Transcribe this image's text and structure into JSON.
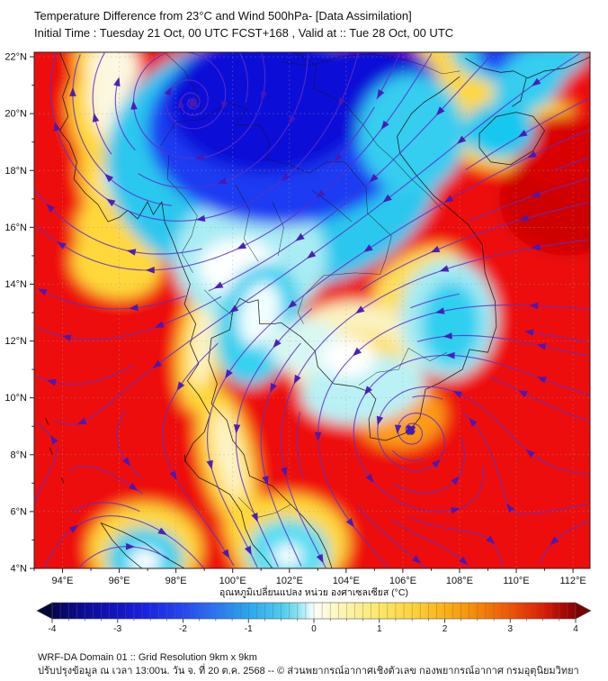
{
  "header": {
    "title_line1": "Temperature Difference from 23°C and Wind 500hPa- [Data Assimilation]",
    "title_line2": "Initial Time : Tuesday 21 Oct, 00 UTC FCST+168 , Valid at ::  Tue 28 Oct, 00 UTC"
  },
  "map": {
    "lon_min": 93.0,
    "lon_max": 112.6,
    "lat_min": 4.0,
    "lat_max": 22.16,
    "x_tick_labels": [
      "94°E",
      "96°E",
      "98°E",
      "100°E",
      "102°E",
      "104°E",
      "106°E",
      "108°E",
      "110°E",
      "112°E"
    ],
    "y_tick_labels": [
      "4°N",
      "6°N",
      "8°N",
      "10°N",
      "12°N",
      "14°N",
      "16°N",
      "18°N",
      "20°N",
      "22°N"
    ],
    "grid_step_deg": 2,
    "base_color": "#ee0d0d",
    "streamline_color": "#5c2fc9",
    "arrow_color": "#4718b6",
    "grid_color": "#9aa0a6",
    "coast_color": "#141414",
    "temperature_blobs": [
      [
        95.0,
        21.4,
        0.55,
        1.3,
        -10,
        "#ffd83a"
      ],
      [
        94.9,
        19.6,
        0.6,
        1.6,
        -14,
        "#ffd83a"
      ],
      [
        95.5,
        17.3,
        0.8,
        1.7,
        -18,
        "#ffd83a"
      ],
      [
        96.1,
        16.2,
        1.7,
        1.3,
        -25,
        "#ffd83a"
      ],
      [
        95.9,
        14.7,
        1.6,
        1.2,
        10,
        "#ffd83a"
      ],
      [
        95.8,
        21.6,
        0.9,
        1.0,
        0,
        "#fdf8e0"
      ],
      [
        95.7,
        20.3,
        0.75,
        1.5,
        -12,
        "#fcf7e0"
      ],
      [
        96.4,
        17.9,
        1.2,
        0.8,
        -30,
        "#fbf3cc"
      ],
      [
        98.9,
        11.8,
        0.85,
        2.3,
        7,
        "#ffd83a"
      ],
      [
        99.8,
        7.9,
        0.95,
        2.5,
        -12,
        "#ffd83a"
      ],
      [
        101.1,
        5.0,
        1.15,
        1.8,
        -35,
        "#ffd83a"
      ],
      [
        98.95,
        11.9,
        0.4,
        1.5,
        7,
        "#fdf4c8"
      ],
      [
        99.85,
        8.0,
        0.45,
        1.6,
        -12,
        "#fdf4c8"
      ],
      [
        96.9,
        4.7,
        2.0,
        1.6,
        0,
        "#ffd83a"
      ],
      [
        102.0,
        4.9,
        2.1,
        1.7,
        0,
        "#ffd83a"
      ],
      [
        104.3,
        11.6,
        2.5,
        1.8,
        0,
        "#fbf2bf"
      ],
      [
        104.4,
        11.1,
        1.8,
        1.2,
        0,
        "#fede5a"
      ],
      [
        106.5,
        14.2,
        1.7,
        0.9,
        -28,
        "#fede5a"
      ],
      [
        105.2,
        10.0,
        1.3,
        0.9,
        0,
        "#fede5a"
      ],
      [
        105.9,
        9.4,
        1.6,
        1.2,
        0,
        "#fc9b14"
      ],
      [
        109.6,
        19.8,
        2.4,
        1.8,
        0,
        "#fed83a"
      ],
      [
        108.0,
        21.7,
        1.6,
        1.0,
        35,
        "#fed83a"
      ],
      [
        110.0,
        20.7,
        0.9,
        0.55,
        -30,
        "#fcf3cc"
      ],
      [
        112.0,
        21.6,
        1.7,
        1.3,
        0,
        "#ee0d0d"
      ],
      [
        111.8,
        17.0,
        2.4,
        2.0,
        0,
        "#cf0303"
      ],
      [
        111.6,
        18.7,
        1.6,
        1.3,
        0,
        "#d80606"
      ],
      [
        101.4,
        18.3,
        5.9,
        4.5,
        0,
        "#2cc7ee"
      ],
      [
        100.6,
        14.9,
        2.7,
        2.3,
        0,
        "#a9ecf4"
      ],
      [
        100.2,
        14.6,
        1.4,
        1.0,
        0,
        "#fdffff"
      ],
      [
        101.7,
        19.4,
        4.7,
        3.3,
        0,
        "#1b3bf2"
      ],
      [
        101.2,
        20.4,
        3.5,
        2.5,
        0,
        "#0a0ad8"
      ],
      [
        104.9,
        20.8,
        2.4,
        1.8,
        0,
        "#0a0ad8"
      ],
      [
        106.3,
        19.3,
        1.9,
        2.1,
        0,
        "#35cdf0"
      ],
      [
        110.1,
        22.2,
        2.4,
        1.2,
        0,
        "#35cdf0"
      ],
      [
        110.1,
        22.1,
        1.5,
        0.8,
        0,
        "#1b3bf2"
      ],
      [
        110.5,
        21.2,
        1.5,
        1.0,
        -42,
        "#35cdf0"
      ],
      [
        109.4,
        19.4,
        1.25,
        1.0,
        0,
        "#17c8f0"
      ],
      [
        100.9,
        12.6,
        1.45,
        2.2,
        15,
        "#35d2f0"
      ],
      [
        100.95,
        12.95,
        0.7,
        1.15,
        15,
        "#f2feff"
      ],
      [
        102.6,
        11.8,
        1.35,
        0.95,
        0,
        "#d9f7f2"
      ],
      [
        104.6,
        10.3,
        2.2,
        1.2,
        -8,
        "#b9f1f5"
      ],
      [
        104.1,
        11.4,
        0.95,
        0.7,
        0,
        "#ffffff"
      ],
      [
        107.6,
        12.8,
        1.7,
        2.1,
        0,
        "#a5ebf2"
      ],
      [
        107.7,
        12.6,
        1.05,
        1.5,
        0,
        "#2fd0f0"
      ],
      [
        96.9,
        4.35,
        1.35,
        1.1,
        0,
        "#28d0f0"
      ],
      [
        96.9,
        4.25,
        0.55,
        0.45,
        0,
        "#fbffff"
      ],
      [
        101.95,
        4.55,
        1.45,
        1.2,
        0,
        "#55ddf2"
      ],
      [
        101.95,
        4.45,
        0.5,
        0.4,
        0,
        "#fbffff"
      ]
    ],
    "circulations": [
      {
        "type": "anticyclone",
        "lon": 98.6,
        "lat": 20.35,
        "strength": 1.0,
        "core": 5.5,
        "inflow": 0.12
      },
      {
        "type": "cyclone",
        "lon": 106.25,
        "lat": 8.9,
        "strength": 1.15,
        "core": 4.2,
        "inflow": 0.15
      },
      {
        "type": "anticyclone",
        "lon": 97.2,
        "lat": 1.2,
        "strength": 0.9,
        "core": 5.0,
        "inflow": 0.0
      },
      {
        "type": "cyclone",
        "lon": 114.8,
        "lat": 2.8,
        "strength": 0.85,
        "core": 4.5,
        "inflow": 0.0
      }
    ],
    "background_wind": {
      "u": -0.12,
      "v": 0.0
    },
    "coastlines": [
      [
        [
          93.9,
          22.16
        ],
        [
          94.25,
          21.3
        ],
        [
          94.0,
          20.6
        ],
        [
          94.2,
          19.9
        ],
        [
          93.9,
          19.4
        ],
        [
          94.25,
          18.95
        ],
        [
          94.5,
          18.3
        ],
        [
          94.4,
          17.7
        ],
        [
          94.8,
          17.2
        ],
        [
          95.25,
          16.8
        ],
        [
          95.6,
          16.2
        ],
        [
          96.0,
          16.35
        ],
        [
          96.3,
          16.6
        ],
        [
          96.65,
          16.3
        ],
        [
          97.0,
          16.9
        ],
        [
          97.2,
          16.45
        ],
        [
          97.5,
          16.9
        ],
        [
          97.6,
          16.2
        ],
        [
          97.9,
          15.5
        ],
        [
          98.2,
          14.7
        ],
        [
          98.5,
          14.0
        ],
        [
          98.3,
          13.3
        ],
        [
          98.7,
          12.6
        ],
        [
          98.5,
          11.9
        ],
        [
          98.8,
          11.2
        ],
        [
          98.4,
          10.6
        ],
        [
          98.8,
          10.1
        ],
        [
          99.2,
          9.4
        ],
        [
          99.0,
          8.8
        ],
        [
          98.6,
          8.4
        ],
        [
          98.3,
          7.8
        ],
        [
          98.8,
          7.2
        ],
        [
          99.4,
          6.9
        ],
        [
          99.9,
          6.6
        ],
        [
          100.3,
          6.0
        ],
        [
          100.45,
          5.4
        ],
        [
          100.7,
          4.85
        ],
        [
          101.1,
          4.4
        ],
        [
          101.4,
          4.0
        ]
      ],
      [
        [
          103.5,
          4.0
        ],
        [
          103.3,
          4.6
        ],
        [
          103.0,
          5.2
        ],
        [
          102.5,
          5.8
        ],
        [
          102.05,
          6.25
        ],
        [
          101.4,
          6.9
        ],
        [
          100.6,
          7.25
        ],
        [
          100.4,
          8.0
        ],
        [
          100.0,
          8.5
        ],
        [
          99.8,
          9.2
        ],
        [
          99.25,
          9.8
        ],
        [
          99.45,
          10.5
        ],
        [
          99.15,
          11.3
        ],
        [
          99.25,
          12.1
        ],
        [
          99.9,
          12.4
        ],
        [
          100.0,
          13.05
        ],
        [
          100.25,
          13.5
        ],
        [
          100.55,
          13.35
        ],
        [
          100.9,
          13.45
        ],
        [
          100.95,
          12.6
        ],
        [
          101.45,
          12.6
        ],
        [
          101.7,
          12.65
        ],
        [
          102.4,
          12.15
        ],
        [
          102.9,
          11.65
        ],
        [
          103.0,
          11.1
        ],
        [
          103.55,
          10.5
        ],
        [
          104.3,
          10.4
        ],
        [
          104.85,
          10.2
        ],
        [
          105.05,
          9.95
        ],
        [
          104.8,
          9.25
        ],
        [
          104.85,
          8.6
        ],
        [
          105.4,
          8.5
        ],
        [
          106.2,
          8.8
        ],
        [
          106.6,
          9.3
        ],
        [
          106.8,
          10.3
        ],
        [
          107.25,
          10.5
        ],
        [
          108.1,
          11.0
        ],
        [
          108.35,
          11.7
        ],
        [
          109.0,
          11.6
        ],
        [
          109.3,
          12.5
        ],
        [
          109.25,
          13.4
        ],
        [
          108.9,
          14.4
        ],
        [
          108.8,
          15.4
        ],
        [
          108.3,
          16.1
        ],
        [
          107.6,
          16.7
        ],
        [
          107.1,
          17.1
        ],
        [
          106.5,
          17.8
        ],
        [
          105.9,
          18.6
        ],
        [
          105.8,
          19.2
        ],
        [
          106.3,
          20.0
        ],
        [
          106.75,
          20.4
        ],
        [
          107.3,
          20.75
        ],
        [
          108.0,
          21.3
        ]
      ],
      [
        [
          108.2,
          21.95
        ],
        [
          108.8,
          21.6
        ],
        [
          109.45,
          21.45
        ],
        [
          109.9,
          21.5
        ],
        [
          110.4,
          21.25
        ],
        [
          111.0,
          21.5
        ],
        [
          111.7,
          21.6
        ],
        [
          112.4,
          21.9
        ],
        [
          112.6,
          22.0
        ]
      ],
      [
        [
          110.35,
          21.25
        ],
        [
          110.15,
          20.45
        ],
        [
          109.85,
          20.25
        ]
      ],
      [
        [
          108.7,
          19.3
        ],
        [
          109.3,
          19.9
        ],
        [
          110.0,
          20.05
        ],
        [
          110.6,
          19.9
        ],
        [
          111.0,
          19.4
        ],
        [
          110.6,
          18.7
        ],
        [
          109.8,
          18.2
        ],
        [
          109.1,
          18.3
        ],
        [
          108.7,
          18.8
        ],
        [
          108.7,
          19.3
        ]
      ],
      [
        [
          95.35,
          5.6
        ],
        [
          96.1,
          5.3
        ],
        [
          96.9,
          4.9
        ],
        [
          97.6,
          4.4
        ],
        [
          98.3,
          4.0
        ]
      ],
      [
        [
          95.35,
          5.6
        ],
        [
          95.75,
          5.0
        ],
        [
          96.25,
          4.45
        ],
        [
          96.8,
          4.0
        ]
      ],
      [
        [
          93.4,
          9.3
        ],
        [
          93.5,
          9.05
        ]
      ],
      [
        [
          93.55,
          8.25
        ],
        [
          93.65,
          8.0
        ]
      ],
      [
        [
          93.95,
          7.2
        ],
        [
          94.05,
          7.0
        ]
      ],
      [
        [
          98.3,
          8.0
        ],
        [
          98.35,
          7.75
        ]
      ]
    ],
    "borders": [
      [
        [
          97.45,
          18.85
        ],
        [
          98.0,
          19.7
        ],
        [
          98.9,
          19.8
        ],
        [
          99.9,
          20.4
        ],
        [
          100.5,
          20.15
        ],
        [
          100.1,
          19.6
        ],
        [
          100.95,
          19.6
        ],
        [
          101.3,
          19.0
        ],
        [
          101.2,
          18.4
        ],
        [
          102.0,
          18.2
        ],
        [
          102.7,
          17.9
        ],
        [
          103.3,
          18.3
        ],
        [
          103.95,
          18.3
        ],
        [
          104.7,
          17.4
        ],
        [
          104.75,
          16.5
        ],
        [
          105.6,
          15.7
        ],
        [
          105.4,
          14.9
        ],
        [
          105.2,
          14.35
        ],
        [
          104.3,
          14.4
        ],
        [
          103.2,
          14.3
        ],
        [
          102.5,
          13.6
        ],
        [
          102.3,
          13.0
        ],
        [
          102.5,
          12.6
        ]
      ],
      [
        [
          97.75,
          18.55
        ],
        [
          97.7,
          17.7
        ],
        [
          98.3,
          17.05
        ],
        [
          98.75,
          16.4
        ],
        [
          98.55,
          15.7
        ],
        [
          98.2,
          15.1
        ],
        [
          98.6,
          14.4
        ]
      ],
      [
        [
          102.15,
          22.16
        ],
        [
          102.95,
          21.7
        ],
        [
          102.85,
          20.9
        ],
        [
          103.9,
          20.4
        ],
        [
          104.6,
          19.6
        ],
        [
          105.1,
          18.9
        ],
        [
          105.65,
          18.4
        ],
        [
          106.3,
          17.7
        ],
        [
          106.9,
          17.15
        ],
        [
          107.4,
          16.6
        ]
      ],
      [
        [
          101.75,
          21.8
        ],
        [
          102.8,
          21.7
        ],
        [
          103.8,
          22.0
        ],
        [
          104.8,
          22.1
        ],
        [
          105.9,
          21.95
        ],
        [
          106.7,
          21.7
        ],
        [
          107.4,
          21.4
        ],
        [
          108.0,
          21.5
        ]
      ],
      [
        [
          97.6,
          22.16
        ],
        [
          98.3,
          21.5
        ],
        [
          98.7,
          20.8
        ],
        [
          98.9,
          20.1
        ]
      ],
      [
        [
          100.2,
          6.5
        ],
        [
          100.9,
          5.8
        ],
        [
          101.5,
          5.95
        ],
        [
          102.05,
          6.25
        ]
      ],
      [
        [
          104.45,
          10.45
        ],
        [
          105.1,
          10.9
        ],
        [
          105.85,
          11.0
        ],
        [
          106.2,
          11.75
        ],
        [
          106.95,
          11.3
        ],
        [
          107.55,
          11.6
        ]
      ],
      [
        [
          100.1,
          17.5
        ],
        [
          100.6,
          16.6
        ],
        [
          100.4,
          15.6
        ],
        [
          100.9,
          14.8
        ]
      ],
      [
        [
          101.4,
          16.9
        ],
        [
          101.8,
          16.0
        ],
        [
          101.6,
          15.0
        ]
      ],
      [
        [
          102.8,
          17.3
        ],
        [
          103.5,
          16.8
        ],
        [
          104.2,
          16.2
        ]
      ],
      [
        [
          99.0,
          13.8
        ],
        [
          99.6,
          13.2
        ],
        [
          100.0,
          12.9
        ]
      ]
    ]
  },
  "colorbar": {
    "title": "อุณหภูมิเปลี่ยนแปลง หน่วย องศาเซลเซียส (°C)",
    "range": [
      -4,
      4
    ],
    "units": "°C",
    "tick_labels": [
      "-4",
      "-3",
      "-2",
      "-1",
      "0",
      "1",
      "2",
      "3",
      "4"
    ],
    "left_tip_color": "#04043c",
    "right_tip_color": "#790101",
    "stops": [
      [
        0.0,
        "#05054e"
      ],
      [
        0.05,
        "#0a0a8e"
      ],
      [
        0.11,
        "#1111bb"
      ],
      [
        0.18,
        "#1a22e2"
      ],
      [
        0.25,
        "#2547f0"
      ],
      [
        0.31,
        "#2a74f2"
      ],
      [
        0.375,
        "#2aa6ef"
      ],
      [
        0.44,
        "#4fccee"
      ],
      [
        0.47,
        "#8ce4f1"
      ],
      [
        0.5,
        "#fdfefe"
      ],
      [
        0.53,
        "#fdf9d0"
      ],
      [
        0.57,
        "#fdf2a2"
      ],
      [
        0.625,
        "#fce767"
      ],
      [
        0.69,
        "#fcd23b"
      ],
      [
        0.75,
        "#fab116"
      ],
      [
        0.81,
        "#f78908"
      ],
      [
        0.875,
        "#f05505"
      ],
      [
        0.94,
        "#d81d04"
      ],
      [
        0.97,
        "#b20a03"
      ],
      [
        1.0,
        "#8c0202"
      ]
    ]
  },
  "footer": {
    "line1": "WRF-DA Domain 01 :: Grid Resolution 9km x 9km",
    "line2": "ปรับปรุงข้อมูล ณ เวลา 13:00น. วัน จ. ที่ 20 ต.ค. 2568 -- © ส่วนพยากรณ์อากาศเชิงตัวเลข กองพยากรณ์อากาศ กรมอุตุนิยมวิทยา"
  }
}
